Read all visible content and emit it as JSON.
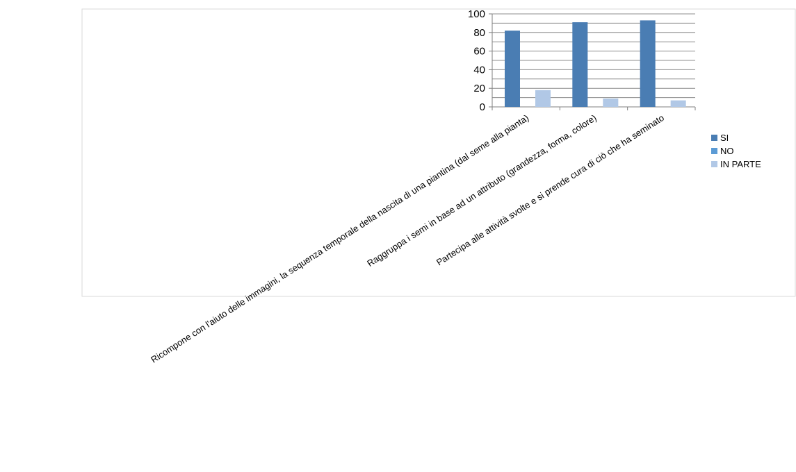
{
  "chart_data": {
    "type": "bar",
    "categories": [
      "Ricompone con l'aiuto delle immagini, la sequenza temporale della nascita di una piantina (dal seme alla pianta)",
      "Raggruppa i semi in base ad un attributo (grandezza, forma, colore)",
      "Partecipa alle attività svolte e si prende cura di ciò che ha seminato"
    ],
    "series": [
      {
        "name": "SI",
        "values": [
          82,
          91,
          93
        ]
      },
      {
        "name": "NO",
        "values": [
          0,
          0,
          0
        ]
      },
      {
        "name": "IN PARTE",
        "values": [
          18,
          9,
          7
        ]
      }
    ],
    "ylim": [
      0,
      100
    ],
    "yticks": [
      0,
      20,
      40,
      60,
      80,
      100
    ],
    "grid": true,
    "legend": "right",
    "colors": {
      "SI": "#4a7db3",
      "NO": "#5b9bd5",
      "IN PARTE": "#b1c8e6"
    }
  }
}
